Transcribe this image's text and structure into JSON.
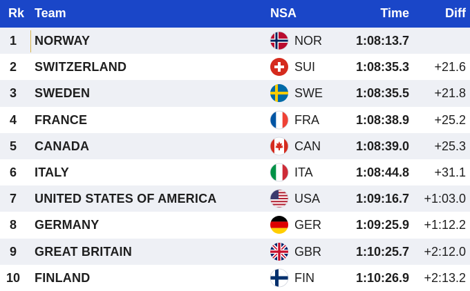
{
  "header": {
    "rank": "Rk",
    "team": "Team",
    "nsa": "NSA",
    "time": "Time",
    "diff": "Diff"
  },
  "rows": [
    {
      "rank": "1",
      "team": "NORWAY",
      "nsa": "NOR",
      "time": "1:08:13.7",
      "diff": "",
      "flag": "flag-norway-icon"
    },
    {
      "rank": "2",
      "team": "SWITZERLAND",
      "nsa": "SUI",
      "time": "1:08:35.3",
      "diff": "+21.6",
      "flag": "flag-switzerland-icon"
    },
    {
      "rank": "3",
      "team": "SWEDEN",
      "nsa": "SWE",
      "time": "1:08:35.5",
      "diff": "+21.8",
      "flag": "flag-sweden-icon"
    },
    {
      "rank": "4",
      "team": "FRANCE",
      "nsa": "FRA",
      "time": "1:08:38.9",
      "diff": "+25.2",
      "flag": "flag-france-icon"
    },
    {
      "rank": "5",
      "team": "CANADA",
      "nsa": "CAN",
      "time": "1:08:39.0",
      "diff": "+25.3",
      "flag": "flag-canada-icon"
    },
    {
      "rank": "6",
      "team": "ITALY",
      "nsa": "ITA",
      "time": "1:08:44.8",
      "diff": "+31.1",
      "flag": "flag-italy-icon"
    },
    {
      "rank": "7",
      "team": "UNITED STATES OF AMERICA",
      "nsa": "USA",
      "time": "1:09:16.7",
      "diff": "+1:03.0",
      "flag": "flag-usa-icon"
    },
    {
      "rank": "8",
      "team": "GERMANY",
      "nsa": "GER",
      "time": "1:09:25.9",
      "diff": "+1:12.2",
      "flag": "flag-germany-icon"
    },
    {
      "rank": "9",
      "team": "GREAT BRITAIN",
      "nsa": "GBR",
      "time": "1:10:25.7",
      "diff": "+2:12.0",
      "flag": "flag-great-britain-icon"
    },
    {
      "rank": "10",
      "team": "FINLAND",
      "nsa": "FIN",
      "time": "1:10:26.9",
      "diff": "+2:13.2",
      "flag": "flag-finland-icon"
    }
  ],
  "colors": {
    "header_bg": "#1a46c8",
    "alt_row_bg": "#eef0f5"
  }
}
